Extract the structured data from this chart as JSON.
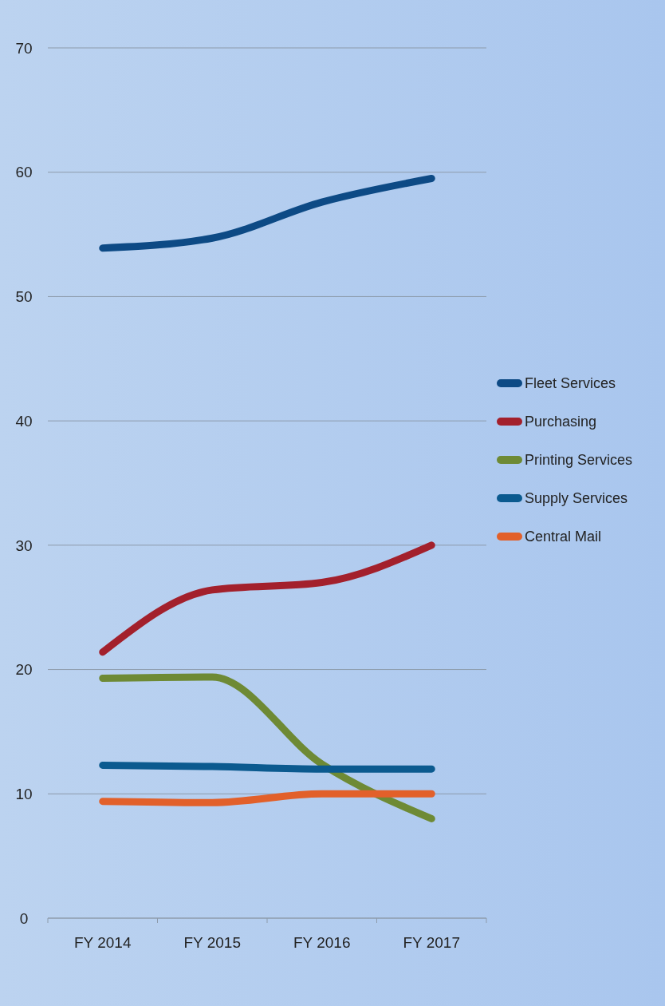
{
  "chart_data": {
    "type": "line",
    "categories": [
      "FY 2014",
      "FY 2015",
      "FY 2016",
      "FY 2017"
    ],
    "series": [
      {
        "name": "Fleet Services",
        "color": "#0d4a85",
        "values": [
          53.9,
          54.7,
          57.6,
          59.5
        ]
      },
      {
        "name": "Purchasing",
        "color": "#a3202c",
        "values": [
          21.4,
          26.4,
          27,
          30
        ]
      },
      {
        "name": "Printing Services",
        "color": "#6e8a35",
        "values": [
          19.3,
          19.4,
          12.4,
          8
        ]
      },
      {
        "name": "Supply Services",
        "color": "#0b5a8f",
        "values": [
          12.3,
          12.2,
          12,
          12
        ]
      },
      {
        "name": "Central Mail",
        "color": "#e2602a",
        "values": [
          9.4,
          9.3,
          10,
          10
        ]
      }
    ],
    "ylim": [
      0,
      70
    ],
    "yticks": [
      0,
      10,
      20,
      30,
      40,
      50,
      60,
      70
    ],
    "grid": "y",
    "legend": "right",
    "line_style": "solid",
    "marker": "none"
  }
}
